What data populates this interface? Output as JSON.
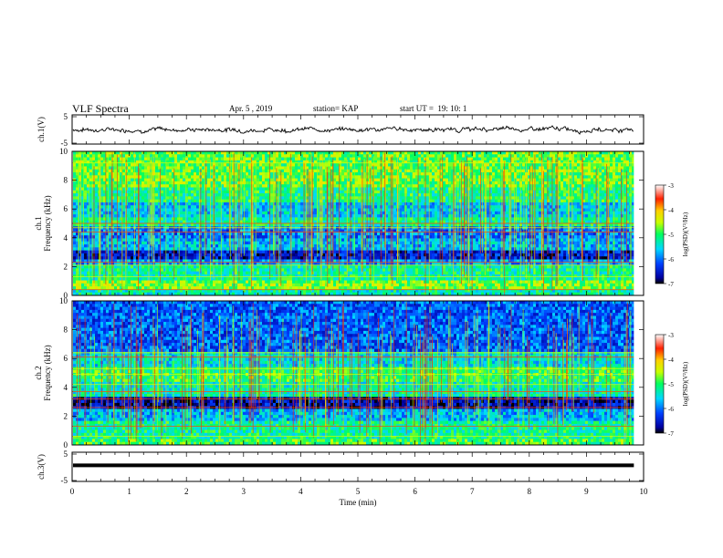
{
  "header": {
    "title": "VLF Spectra",
    "date": "Apr. 5 , 2019",
    "station": "station= KAP",
    "start": "start UT =  19: 10: 1"
  },
  "chart_data": [
    {
      "type": "line",
      "ylabel": "ch.1(V)",
      "ylim": [
        -5,
        5
      ],
      "yticks": [
        "5",
        "-5"
      ],
      "xlim": [
        0,
        10
      ],
      "series": [
        {
          "style": "noisy",
          "level": 0,
          "amplitude": 1.5,
          "color": "#000000"
        }
      ]
    },
    {
      "type": "heatmap",
      "ylabel": "ch.1\nFrequency (kHz)",
      "ylim": [
        0,
        10
      ],
      "yticks": [
        "0",
        "2",
        "4",
        "6",
        "8",
        "10"
      ],
      "xlim": [
        0,
        10
      ],
      "data_end_min": 9.83,
      "colorbar": {
        "label": "log(PSD)(V²/Hz)",
        "ticks": [
          "-3",
          "-4",
          "-5",
          "-6",
          "-7"
        ],
        "range": [
          -7,
          -3
        ]
      },
      "bands": [
        {
          "from": 0,
          "to": 0.5,
          "level": -5.3
        },
        {
          "from": 0.5,
          "to": 1.1,
          "level": -4.7
        },
        {
          "from": 1.1,
          "to": 2.0,
          "level": -5.2
        },
        {
          "from": 2.0,
          "to": 2.6,
          "level": -5.8
        },
        {
          "from": 2.6,
          "to": 3.2,
          "level": -6.5
        },
        {
          "from": 3.2,
          "to": 4.0,
          "level": -5.7
        },
        {
          "from": 4.0,
          "to": 4.8,
          "level": -6.0
        },
        {
          "from": 4.8,
          "to": 5.5,
          "level": -5.2
        },
        {
          "from": 5.5,
          "to": 6.4,
          "level": -5.6
        },
        {
          "from": 6.4,
          "to": 7.4,
          "level": -5.1
        },
        {
          "from": 7.4,
          "to": 10,
          "level": -4.8
        }
      ]
    },
    {
      "type": "heatmap",
      "ylabel": "ch.2\nFrequency (kHz)",
      "ylim": [
        0,
        10
      ],
      "yticks": [
        "0",
        "2",
        "4",
        "6",
        "8",
        "10"
      ],
      "xlim": [
        0,
        10
      ],
      "data_end_min": 9.83,
      "colorbar": {
        "label": "log(PSD)(V²/Hz)",
        "ticks": [
          "-3",
          "-4",
          "-5",
          "-6",
          "-7"
        ],
        "range": [
          -7,
          -3
        ]
      },
      "bands": [
        {
          "from": 0,
          "to": 0.4,
          "level": -4.9
        },
        {
          "from": 0.4,
          "to": 1.6,
          "level": -5.2
        },
        {
          "from": 1.6,
          "to": 2.5,
          "level": -5.7
        },
        {
          "from": 2.5,
          "to": 3.4,
          "level": -6.6
        },
        {
          "from": 3.4,
          "to": 4.3,
          "level": -5.3
        },
        {
          "from": 4.3,
          "to": 5.5,
          "level": -5.0
        },
        {
          "from": 5.5,
          "to": 6.5,
          "level": -5.5
        },
        {
          "from": 6.5,
          "to": 10,
          "level": -6.1
        }
      ]
    },
    {
      "type": "line",
      "ylabel": "ch.3(V)",
      "ylim": [
        -5,
        5
      ],
      "yticks": [
        "5",
        "-5"
      ],
      "xlim": [
        0,
        10
      ],
      "xlabel": "Time (min)",
      "xticks": [
        "0",
        "1",
        "2",
        "3",
        "4",
        "5",
        "6",
        "7",
        "8",
        "9",
        "10"
      ],
      "series": [
        {
          "style": "flat",
          "level": 0,
          "color": "#000000"
        }
      ]
    }
  ]
}
